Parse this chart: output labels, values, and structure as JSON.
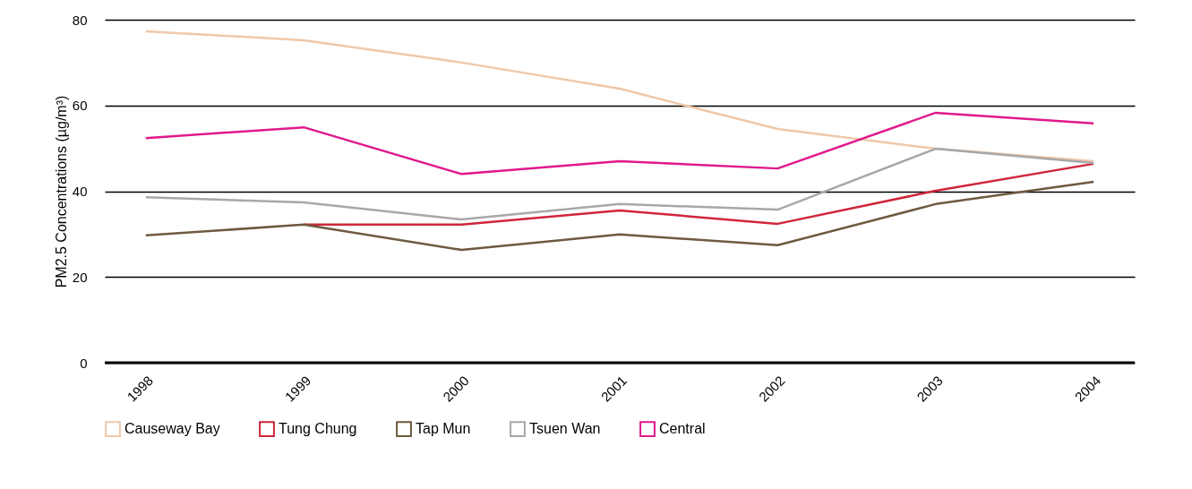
{
  "chart_data": {
    "type": "line",
    "ylabel": "PM2.5 Concentrations (µg/m³)",
    "categories": [
      "1998",
      "1999",
      "2000",
      "2001",
      "2002",
      "2003",
      "2004"
    ],
    "series": [
      {
        "name": "Causeway Bay",
        "color": "#f0c8a8",
        "values": [
          77.3,
          75.2,
          70,
          63.9,
          54.5,
          49.9,
          47
        ]
      },
      {
        "name": "Tung Chung",
        "color": "#d0263a",
        "values": [
          null,
          32.2,
          32.2,
          35.5,
          32.4,
          40.1,
          46.4
        ]
      },
      {
        "name": "Tap Mun",
        "color": "#6e5a40",
        "values": [
          29.7,
          32.2,
          26.3,
          29.9,
          27.4,
          37,
          42.2
        ]
      },
      {
        "name": "Tsuen Wan",
        "color": "#a8a8a8",
        "values": [
          38.6,
          37.4,
          33.4,
          37,
          35.7,
          49.9,
          46.6
        ]
      },
      {
        "name": "Central",
        "color": "#e0198c",
        "values": [
          52.4,
          54.9,
          44,
          47,
          45.3,
          58.3,
          55.8
        ]
      }
    ],
    "ylim": [
      0,
      80
    ],
    "yticks": [
      0,
      20,
      40,
      60,
      80
    ],
    "grid": "y",
    "legend": "bottom",
    "marker": "none",
    "line_style": "solid"
  }
}
